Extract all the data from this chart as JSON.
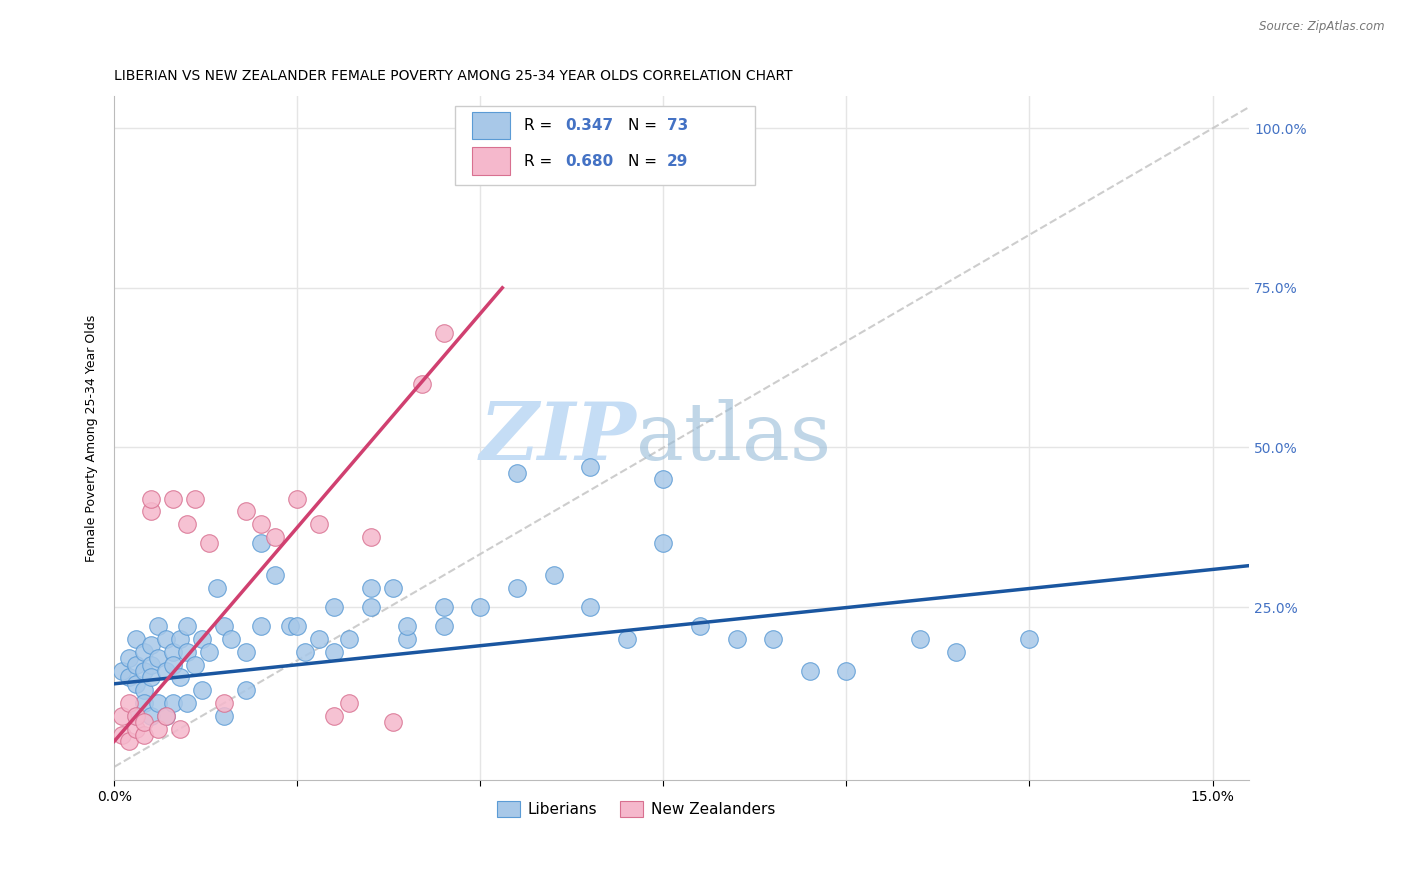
{
  "title": "LIBERIAN VS NEW ZEALANDER FEMALE POVERTY AMONG 25-34 YEAR OLDS CORRELATION CHART",
  "source": "Source: ZipAtlas.com",
  "ylabel": "Female Poverty Among 25-34 Year Olds",
  "xlim": [
    0.0,
    0.155
  ],
  "ylim": [
    -0.02,
    1.05
  ],
  "liberian_color": "#a8c8e8",
  "liberian_edge": "#5b9bd5",
  "nz_color": "#f5b8cc",
  "nz_edge": "#d87090",
  "line_lib_color": "#1a56a0",
  "line_nz_color": "#d04070",
  "diag_color": "#c8c8c8",
  "right_axis_color": "#4472c4",
  "grid_color": "#e5e5e5",
  "bg_color": "#ffffff",
  "liberian_R": 0.347,
  "liberian_N": 73,
  "nz_R": 0.68,
  "nz_N": 29,
  "lib_x": [
    0.001,
    0.002,
    0.002,
    0.003,
    0.003,
    0.003,
    0.004,
    0.004,
    0.004,
    0.005,
    0.005,
    0.005,
    0.006,
    0.006,
    0.007,
    0.007,
    0.008,
    0.008,
    0.009,
    0.009,
    0.01,
    0.01,
    0.011,
    0.012,
    0.013,
    0.014,
    0.015,
    0.016,
    0.018,
    0.02,
    0.022,
    0.024,
    0.026,
    0.028,
    0.03,
    0.032,
    0.035,
    0.038,
    0.04,
    0.045,
    0.05,
    0.055,
    0.06,
    0.065,
    0.07,
    0.075,
    0.08,
    0.09,
    0.1,
    0.11,
    0.003,
    0.004,
    0.005,
    0.006,
    0.007,
    0.008,
    0.01,
    0.012,
    0.015,
    0.018,
    0.02,
    0.025,
    0.03,
    0.035,
    0.04,
    0.045,
    0.055,
    0.065,
    0.075,
    0.085,
    0.095,
    0.115,
    0.125
  ],
  "lib_y": [
    0.15,
    0.14,
    0.17,
    0.13,
    0.16,
    0.2,
    0.15,
    0.18,
    0.12,
    0.16,
    0.19,
    0.14,
    0.17,
    0.22,
    0.15,
    0.2,
    0.18,
    0.16,
    0.14,
    0.2,
    0.18,
    0.22,
    0.16,
    0.2,
    0.18,
    0.28,
    0.22,
    0.2,
    0.18,
    0.22,
    0.3,
    0.22,
    0.18,
    0.2,
    0.25,
    0.2,
    0.25,
    0.28,
    0.2,
    0.22,
    0.25,
    0.28,
    0.3,
    0.25,
    0.2,
    0.45,
    0.22,
    0.2,
    0.15,
    0.2,
    0.08,
    0.1,
    0.08,
    0.1,
    0.08,
    0.1,
    0.1,
    0.12,
    0.08,
    0.12,
    0.35,
    0.22,
    0.18,
    0.28,
    0.22,
    0.25,
    0.46,
    0.47,
    0.35,
    0.2,
    0.15,
    0.18,
    0.2
  ],
  "nz_x": [
    0.001,
    0.001,
    0.002,
    0.002,
    0.003,
    0.003,
    0.004,
    0.004,
    0.005,
    0.005,
    0.006,
    0.007,
    0.008,
    0.009,
    0.01,
    0.011,
    0.013,
    0.015,
    0.018,
    0.02,
    0.022,
    0.025,
    0.028,
    0.03,
    0.032,
    0.035,
    0.038,
    0.042,
    0.045
  ],
  "nz_y": [
    0.05,
    0.08,
    0.04,
    0.1,
    0.06,
    0.08,
    0.05,
    0.07,
    0.4,
    0.42,
    0.06,
    0.08,
    0.42,
    0.06,
    0.38,
    0.42,
    0.35,
    0.1,
    0.4,
    0.38,
    0.36,
    0.42,
    0.38,
    0.08,
    0.1,
    0.36,
    0.07,
    0.6,
    0.68
  ],
  "title_fontsize": 10,
  "axis_label_fontsize": 9,
  "tick_fontsize": 10
}
